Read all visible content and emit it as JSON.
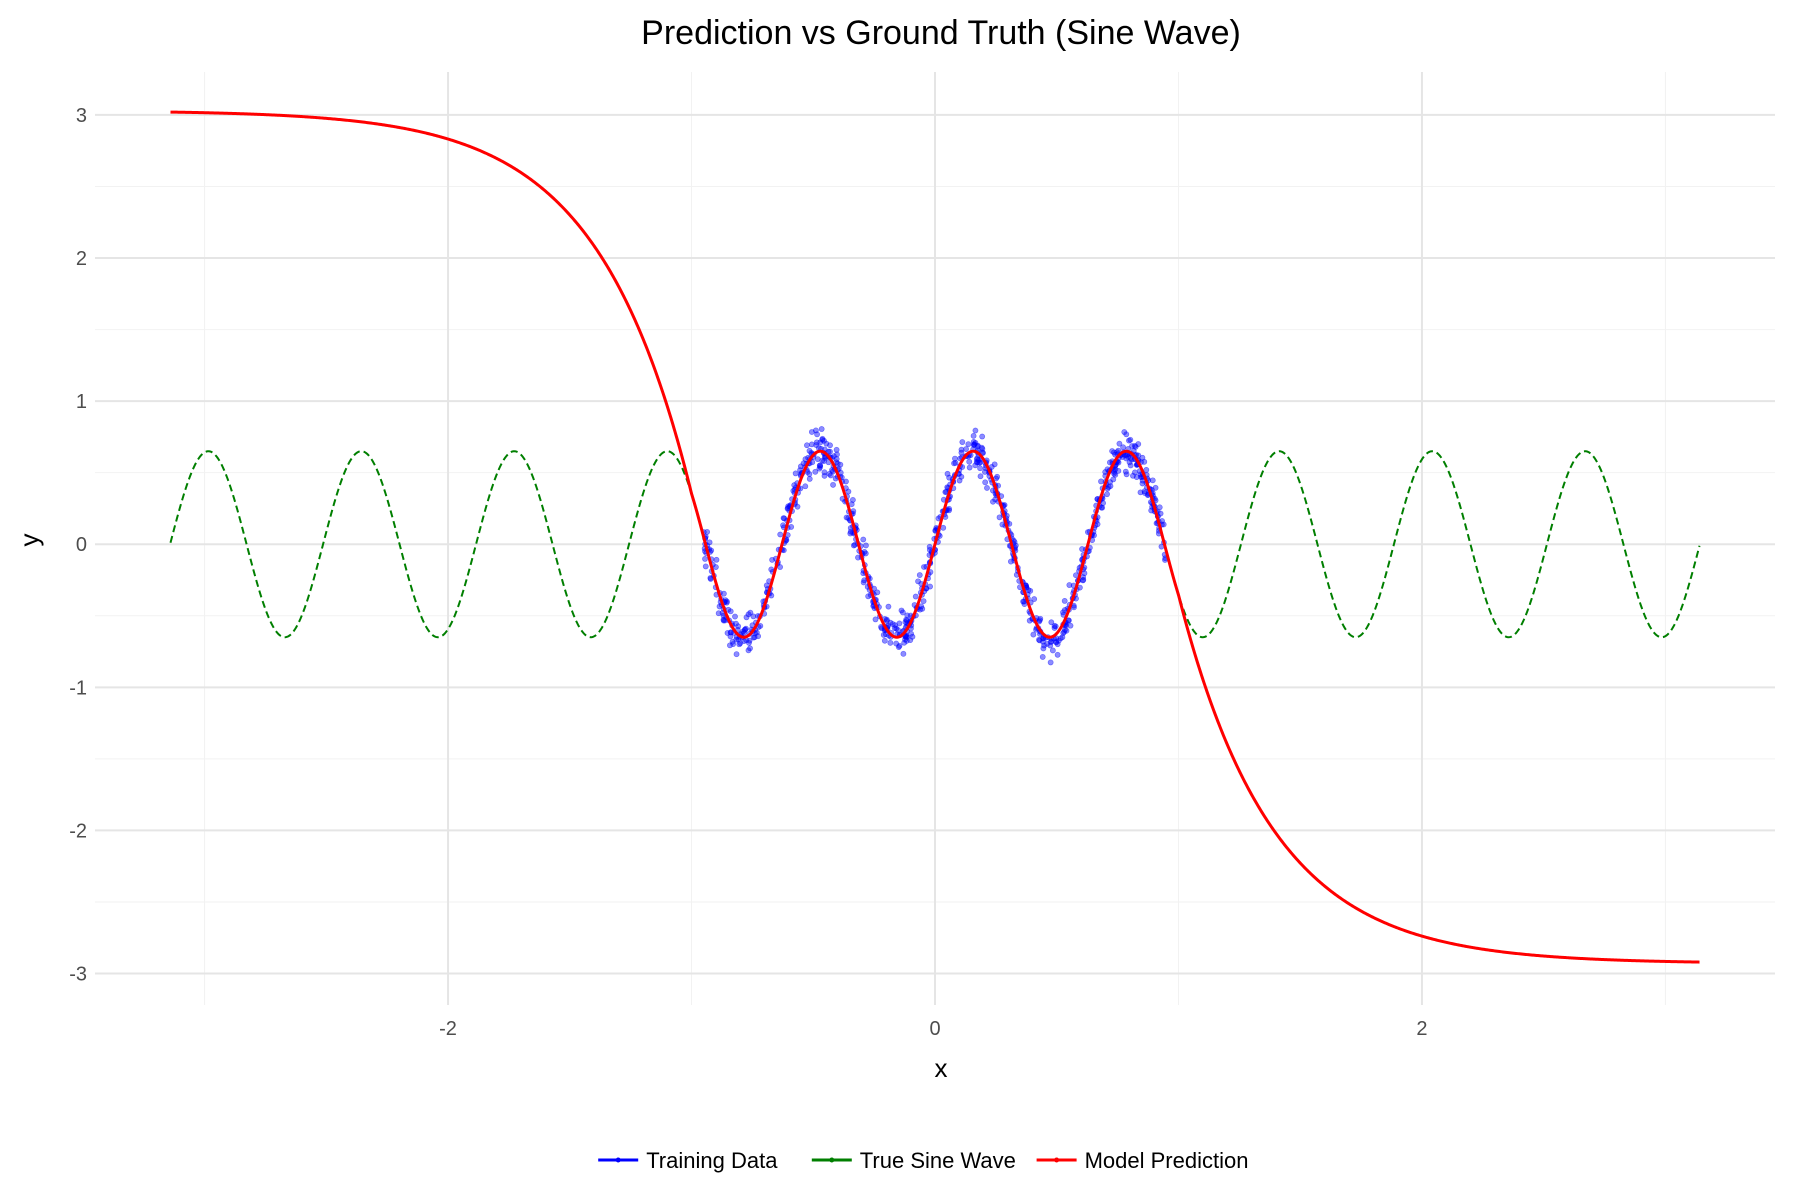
{
  "chart_data": {
    "type": "line",
    "title": "Prediction vs Ground Truth (Sine Wave)",
    "xlabel": "x",
    "ylabel": "y",
    "xlim": [
      -3.45,
      3.45
    ],
    "ylim": [
      -3.22,
      3.3
    ],
    "x_ticks": [
      -2,
      0,
      2
    ],
    "y_ticks": [
      -3,
      -2,
      -1,
      0,
      1,
      2,
      3
    ],
    "x_tick_labels": [
      "-2",
      "0",
      "2"
    ],
    "y_tick_labels": [
      "-3",
      "-2",
      "-1",
      "0",
      "1",
      "2",
      "3"
    ],
    "grid": true,
    "legend_position": "bottom",
    "series": [
      {
        "name": "Training Data",
        "kind": "scatter",
        "color": "#0000ff",
        "x_range": [
          -0.95,
          0.95
        ],
        "function": "0.65*sin(10x) + noise(±0.12)",
        "points": 900
      },
      {
        "name": "True Sine Wave",
        "kind": "line",
        "style": "dashed",
        "color": "#007f00",
        "x_range": [
          -3.14,
          3.14
        ],
        "function": "0.65*sin(10x)"
      },
      {
        "name": "Model Prediction",
        "kind": "line",
        "style": "solid",
        "color": "#ff0000",
        "x_range": [
          -3.14,
          3.14
        ],
        "y_left_end": 3.02,
        "y_right_end": -2.92,
        "function": "0.65*sin(10x) in [-1,1], saturating tails"
      }
    ]
  }
}
